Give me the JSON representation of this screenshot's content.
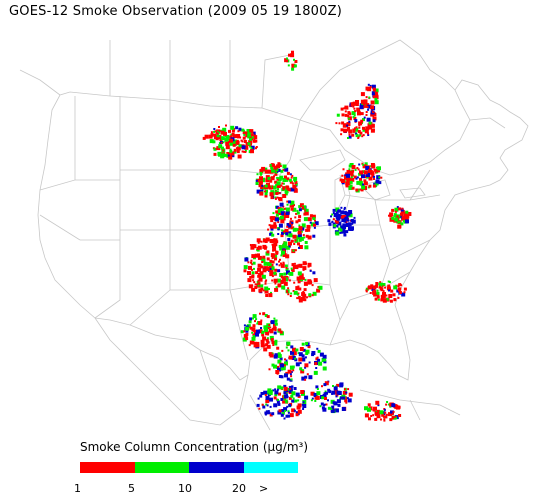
{
  "title": "GOES-12 Smoke Observation (2009 05 19  1800Z)",
  "legend": {
    "title": "Smoke Column Concentration (µg/m³)",
    "colors": [
      "#ff0000",
      "#00ee00",
      "#0000cc",
      "#00ffff"
    ],
    "ticks": [
      "1",
      "5",
      "10",
      "20",
      ">"
    ]
  }
}
